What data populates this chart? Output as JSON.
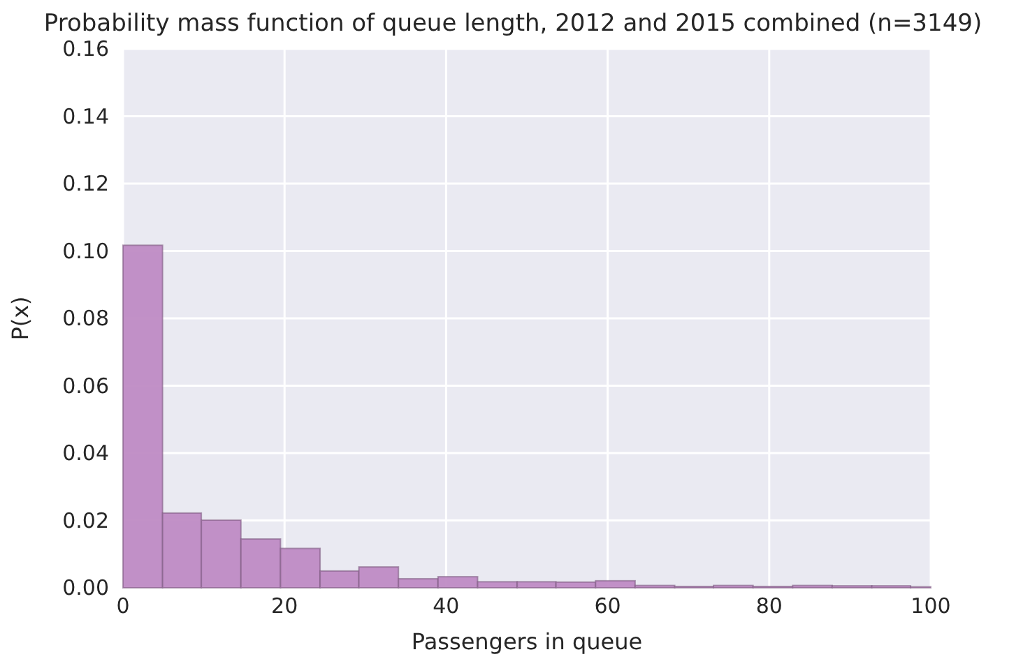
{
  "chart_data": {
    "type": "histogram",
    "title": "Probability mass function of queue length, 2012 and 2015 combined (n=3149)",
    "xlabel": "Passengers in queue",
    "ylabel": "P(x)",
    "bins": [
      0,
      4.9,
      9.7,
      14.6,
      19.5,
      24.4,
      29.2,
      34.1,
      39,
      43.9,
      48.8,
      53.6,
      58.5,
      63.4,
      68.3,
      73.1,
      78,
      82.9,
      87.8,
      92.7,
      97.5,
      100
    ],
    "values": [
      0.1017,
      0.0222,
      0.0201,
      0.0145,
      0.0117,
      0.005,
      0.0062,
      0.0027,
      0.0033,
      0.0018,
      0.0018,
      0.0017,
      0.0021,
      0.0007,
      0.0004,
      0.0007,
      0.0004,
      0.0007,
      0.0006,
      0.0006,
      0.0003
    ],
    "color": "#bf8bc4",
    "xlim": [
      0,
      100
    ],
    "xticks": [
      0,
      20,
      40,
      60,
      80,
      100
    ],
    "ylim": [
      0,
      0.16
    ],
    "yticks": [
      {
        "value": 0,
        "label": "0.00"
      },
      {
        "value": 0.02,
        "label": "0.02"
      },
      {
        "value": 0.04,
        "label": "0.04"
      },
      {
        "value": 0.06,
        "label": "0.06"
      },
      {
        "value": 0.08,
        "label": "0.08"
      },
      {
        "value": 0.1,
        "label": "0.10"
      },
      {
        "value": 0.12,
        "label": "0.12"
      },
      {
        "value": 0.14,
        "label": "0.14"
      },
      {
        "value": 0.16,
        "label": "0.16"
      }
    ],
    "grid": true
  }
}
